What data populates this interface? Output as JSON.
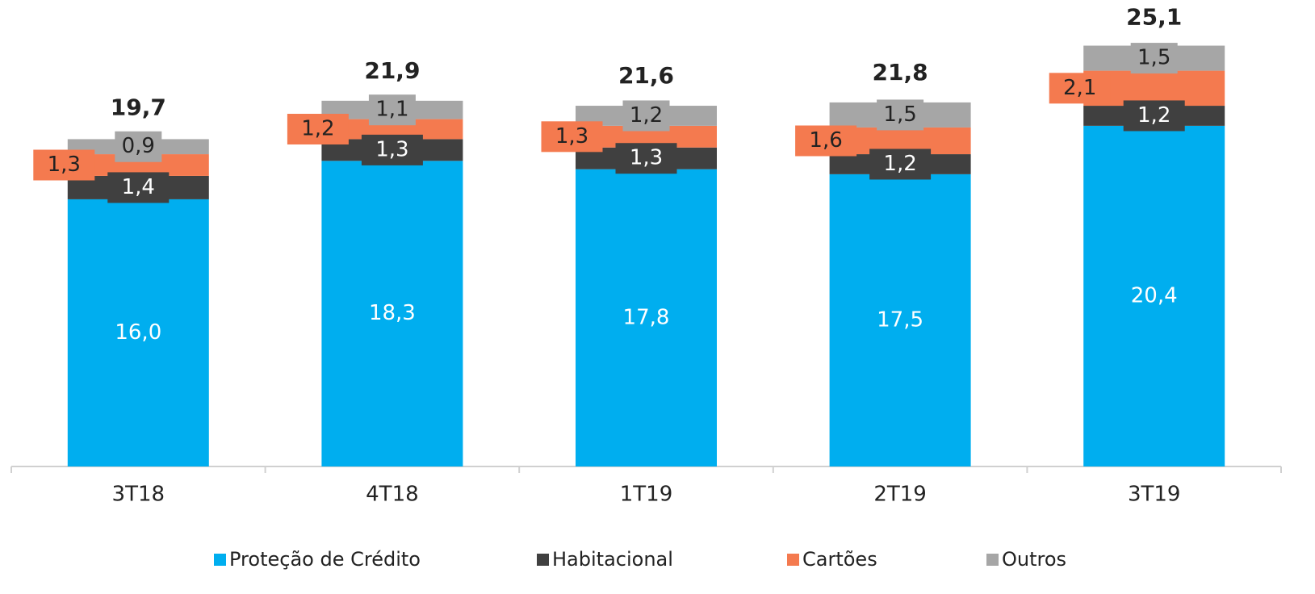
{
  "chart_data": {
    "type": "stacked_bar",
    "categories": [
      "3T18",
      "4T18",
      "1T19",
      "2T19",
      "3T19"
    ],
    "series": [
      {
        "name": "Proteção de Crédito",
        "color": "#00AEEF",
        "values": [
          16.0,
          18.3,
          17.8,
          17.5,
          20.4
        ],
        "value_labels": [
          "16,0",
          "18,3",
          "17,8",
          "17,5",
          "20,4"
        ]
      },
      {
        "name": "Habitacional",
        "color": "#404040",
        "values": [
          1.4,
          1.3,
          1.3,
          1.2,
          1.2
        ],
        "value_labels": [
          "1,4",
          "1,3",
          "1,3",
          "1,2",
          "1,2"
        ]
      },
      {
        "name": "Cartões",
        "color": "#F47A4F",
        "values": [
          1.3,
          1.2,
          1.3,
          1.6,
          2.1
        ],
        "value_labels": [
          "1,3",
          "1,2",
          "1,3",
          "1,6",
          "2,1"
        ]
      },
      {
        "name": "Outros",
        "color": "#A6A6A6",
        "values": [
          0.9,
          1.1,
          1.2,
          1.5,
          1.5
        ],
        "value_labels": [
          "0,9",
          "1,1",
          "1,2",
          "1,5",
          "1,5"
        ]
      }
    ],
    "totals": [
      19.7,
      21.9,
      21.6,
      21.8,
      25.1
    ],
    "total_labels": [
      "19,7",
      "21,9",
      "21,6",
      "21,8",
      "25,1"
    ],
    "ylim": [
      0,
      26
    ]
  }
}
